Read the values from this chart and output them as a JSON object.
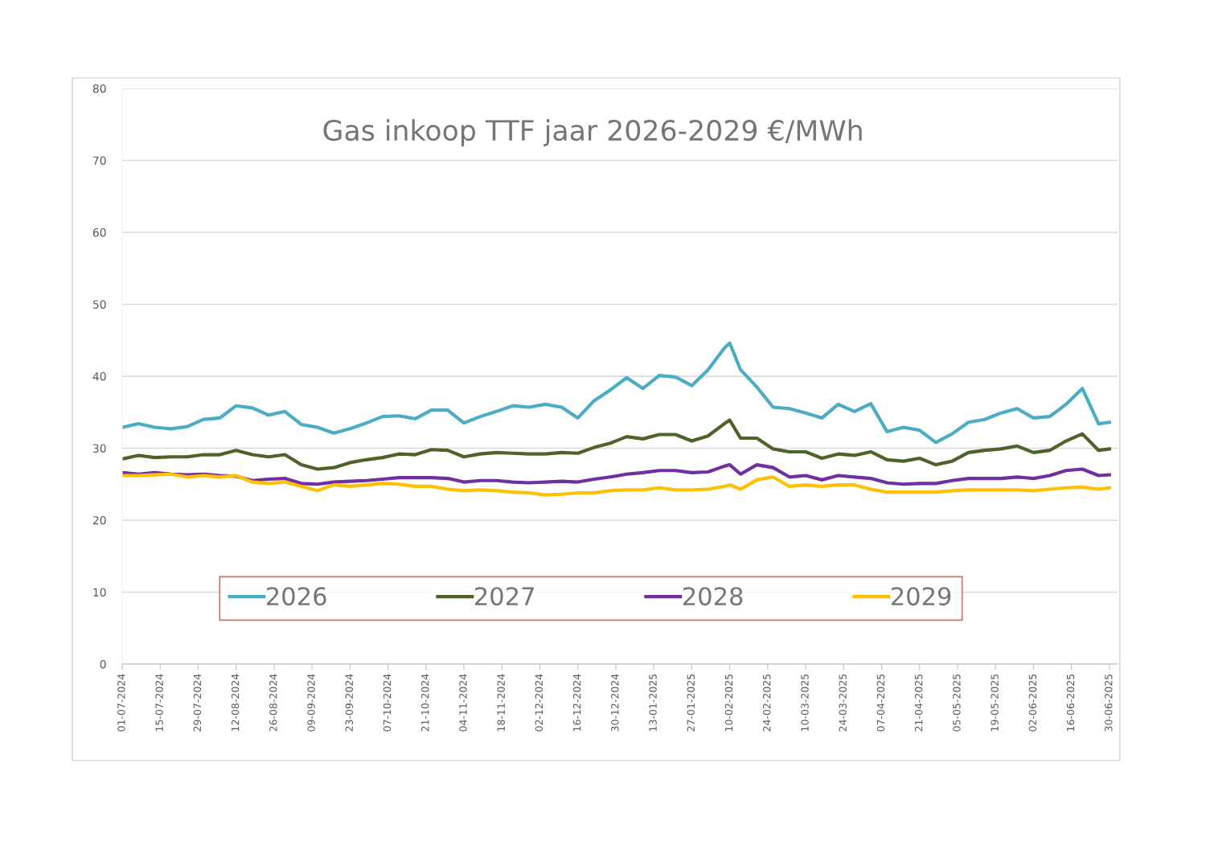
{
  "chart_data": {
    "type": "line",
    "title": "Gas inkoop TTF jaar 2026-2029 €/MWh",
    "x": [
      "2024-07-01",
      "2024-07-07",
      "2024-07-13",
      "2024-07-19",
      "2024-07-25",
      "2024-07-31",
      "2024-08-06",
      "2024-08-12",
      "2024-08-18",
      "2024-08-24",
      "2024-08-30",
      "2024-09-05",
      "2024-09-11",
      "2024-09-17",
      "2024-09-23",
      "2024-09-29",
      "2024-10-05",
      "2024-10-11",
      "2024-10-17",
      "2024-10-23",
      "2024-10-29",
      "2024-11-04",
      "2024-11-10",
      "2024-11-16",
      "2024-11-22",
      "2024-11-28",
      "2024-12-04",
      "2024-12-10",
      "2024-12-16",
      "2024-12-22",
      "2024-12-28",
      "2025-01-03",
      "2025-01-09",
      "2025-01-15",
      "2025-01-21",
      "2025-01-27",
      "2025-02-02",
      "2025-02-08",
      "2025-02-10",
      "2025-02-14",
      "2025-02-20",
      "2025-02-26",
      "2025-03-04",
      "2025-03-10",
      "2025-03-16",
      "2025-03-22",
      "2025-03-28",
      "2025-04-03",
      "2025-04-09",
      "2025-04-15",
      "2025-04-21",
      "2025-04-27",
      "2025-05-03",
      "2025-05-09",
      "2025-05-15",
      "2025-05-21",
      "2025-05-27",
      "2025-06-02",
      "2025-06-08",
      "2025-06-14",
      "2025-06-20",
      "2025-06-26",
      "2025-06-30"
    ],
    "series": [
      {
        "name": "2026",
        "color": "#4bacc6",
        "values": [
          32.9,
          33.4,
          32.9,
          32.7,
          33.0,
          34.0,
          34.2,
          35.9,
          35.6,
          34.6,
          35.1,
          33.3,
          32.9,
          32.1,
          32.7,
          33.5,
          34.4,
          34.5,
          34.1,
          35.3,
          35.3,
          33.5,
          34.4,
          35.1,
          35.9,
          35.7,
          36.1,
          35.7,
          34.2,
          36.6,
          38.1,
          39.8,
          38.3,
          40.1,
          39.9,
          38.7,
          40.9,
          43.9,
          44.6,
          40.9,
          38.5,
          35.7,
          35.5,
          34.9,
          34.2,
          36.1,
          35.1,
          36.2,
          32.3,
          32.9,
          32.5,
          30.8,
          32.0,
          33.6,
          34.0,
          34.9,
          35.5,
          34.2,
          34.4,
          36.1,
          38.3,
          33.4,
          33.6
        ]
      },
      {
        "name": "2027",
        "color": "#4f6228",
        "values": [
          28.5,
          29.0,
          28.7,
          28.8,
          28.8,
          29.1,
          29.1,
          29.7,
          29.1,
          28.8,
          29.1,
          27.7,
          27.1,
          27.3,
          28.0,
          28.4,
          28.7,
          29.2,
          29.1,
          29.8,
          29.7,
          28.8,
          29.2,
          29.4,
          29.3,
          29.2,
          29.2,
          29.4,
          29.3,
          30.1,
          30.7,
          31.6,
          31.3,
          31.9,
          31.9,
          31.0,
          31.7,
          33.4,
          33.9,
          31.4,
          31.4,
          29.9,
          29.5,
          29.5,
          28.6,
          29.2,
          29.0,
          29.5,
          28.4,
          28.2,
          28.6,
          27.7,
          28.2,
          29.4,
          29.7,
          29.9,
          30.3,
          29.4,
          29.7,
          31.0,
          32.0,
          29.7,
          29.9
        ]
      },
      {
        "name": "2028",
        "color": "#7030a0",
        "values": [
          26.6,
          26.4,
          26.6,
          26.4,
          26.3,
          26.4,
          26.2,
          26.1,
          25.5,
          25.7,
          25.8,
          25.1,
          25.0,
          25.3,
          25.4,
          25.5,
          25.7,
          25.9,
          25.9,
          25.9,
          25.8,
          25.3,
          25.5,
          25.5,
          25.3,
          25.2,
          25.3,
          25.4,
          25.3,
          25.7,
          26.0,
          26.4,
          26.6,
          26.9,
          26.9,
          26.6,
          26.7,
          27.5,
          27.7,
          26.4,
          27.7,
          27.3,
          26.0,
          26.2,
          25.6,
          26.2,
          26.0,
          25.8,
          25.2,
          25.0,
          25.1,
          25.1,
          25.5,
          25.8,
          25.8,
          25.8,
          26.0,
          25.8,
          26.2,
          26.9,
          27.1,
          26.2,
          26.3
        ]
      },
      {
        "name": "2029",
        "color": "#ffc000",
        "values": [
          26.2,
          26.2,
          26.3,
          26.4,
          26.0,
          26.2,
          26.0,
          26.2,
          25.3,
          25.1,
          25.3,
          24.7,
          24.1,
          24.9,
          24.7,
          24.9,
          25.1,
          25.0,
          24.7,
          24.7,
          24.3,
          24.1,
          24.2,
          24.1,
          23.9,
          23.8,
          23.5,
          23.6,
          23.8,
          23.8,
          24.1,
          24.2,
          24.2,
          24.5,
          24.2,
          24.2,
          24.3,
          24.7,
          24.9,
          24.3,
          25.6,
          26.0,
          24.7,
          24.9,
          24.7,
          24.9,
          24.9,
          24.3,
          23.9,
          23.9,
          23.9,
          23.9,
          24.1,
          24.2,
          24.2,
          24.2,
          24.2,
          24.1,
          24.3,
          24.5,
          24.6,
          24.3,
          24.5
        ]
      }
    ],
    "xlim": [
      "2024-07-01",
      "2025-07-03"
    ],
    "xticks": [
      {
        "value": "2024-07-01",
        "label": "01-07-2024"
      },
      {
        "value": "2024-07-15",
        "label": "15-07-2024"
      },
      {
        "value": "2024-07-29",
        "label": "29-07-2024"
      },
      {
        "value": "2024-08-12",
        "label": "12-08-2024"
      },
      {
        "value": "2024-08-26",
        "label": "26-08-2024"
      },
      {
        "value": "2024-09-09",
        "label": "09-09-2024"
      },
      {
        "value": "2024-09-23",
        "label": "23-09-2024"
      },
      {
        "value": "2024-10-07",
        "label": "07-10-2024"
      },
      {
        "value": "2024-10-21",
        "label": "21-10-2024"
      },
      {
        "value": "2024-11-04",
        "label": "04-11-2024"
      },
      {
        "value": "2024-11-18",
        "label": "18-11-2024"
      },
      {
        "value": "2024-12-02",
        "label": "02-12-2024"
      },
      {
        "value": "2024-12-16",
        "label": "16-12-2024"
      },
      {
        "value": "2024-12-30",
        "label": "30-12-2024"
      },
      {
        "value": "2025-01-13",
        "label": "13-01-2025"
      },
      {
        "value": "2025-01-27",
        "label": "27-01-2025"
      },
      {
        "value": "2025-02-10",
        "label": "10-02-2025"
      },
      {
        "value": "2025-02-24",
        "label": "24-02-2025"
      },
      {
        "value": "2025-03-10",
        "label": "10-03-2025"
      },
      {
        "value": "2025-03-24",
        "label": "24-03-2025"
      },
      {
        "value": "2025-04-07",
        "label": "07-04-2025"
      },
      {
        "value": "2025-04-21",
        "label": "21-04-2025"
      },
      {
        "value": "2025-05-05",
        "label": "05-05-2025"
      },
      {
        "value": "2025-05-19",
        "label": "19-05-2025"
      },
      {
        "value": "2025-06-02",
        "label": "02-06-2025"
      },
      {
        "value": "2025-06-16",
        "label": "16-06-2025"
      },
      {
        "value": "2025-06-30",
        "label": "30-06-2025"
      }
    ],
    "ylim": [
      0,
      80
    ],
    "yticks": [
      0,
      10,
      20,
      30,
      40,
      50,
      60,
      70,
      80
    ],
    "grid": "y",
    "legend": "bottom",
    "marker": "none",
    "line_style": "solid"
  }
}
